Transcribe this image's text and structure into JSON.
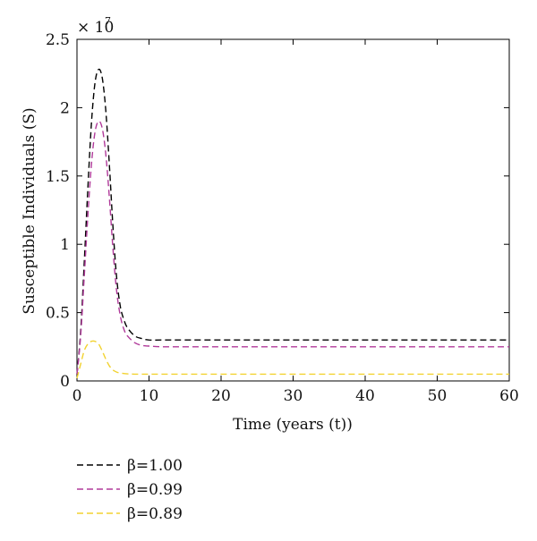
{
  "chart_data": {
    "type": "line",
    "xlabel": "Time (years (t))",
    "ylabel": "Susceptible Individuals (S)",
    "xlim": [
      0,
      60
    ],
    "ylim": [
      0,
      2.5
    ],
    "y_multiplier": "× 10",
    "y_multiplier_exponent": "7",
    "x_ticks": [
      "0",
      "10",
      "20",
      "30",
      "40",
      "50",
      "60"
    ],
    "y_ticks": [
      "0",
      "0.5",
      "1",
      "1.5",
      "2",
      "2.5"
    ],
    "grid": false,
    "legend_position": "below",
    "series": [
      {
        "name": "β=1.00",
        "color": "#000000",
        "x": [
          0,
          0.5,
          1,
          1.5,
          2,
          2.5,
          3,
          3.5,
          4,
          4.5,
          5,
          5.5,
          6,
          6.5,
          7,
          8,
          9,
          10,
          12,
          15,
          20,
          30,
          40,
          50,
          60
        ],
        "y": [
          0.05,
          0.35,
          0.85,
          1.4,
          1.88,
          2.18,
          2.28,
          2.22,
          1.98,
          1.58,
          1.12,
          0.76,
          0.55,
          0.45,
          0.39,
          0.33,
          0.31,
          0.3,
          0.3,
          0.3,
          0.3,
          0.3,
          0.3,
          0.3,
          0.3
        ]
      },
      {
        "name": "β=0.99",
        "color": "#b03a9a",
        "x": [
          0,
          0.5,
          1,
          1.5,
          2,
          2.5,
          3,
          3.5,
          4,
          4.5,
          5,
          5.5,
          6,
          6.5,
          7,
          8,
          9,
          10,
          12,
          15,
          20,
          30,
          40,
          50,
          60
        ],
        "y": [
          0.05,
          0.32,
          0.75,
          1.2,
          1.58,
          1.82,
          1.9,
          1.85,
          1.66,
          1.34,
          0.96,
          0.66,
          0.48,
          0.38,
          0.33,
          0.28,
          0.26,
          0.255,
          0.25,
          0.25,
          0.25,
          0.25,
          0.25,
          0.25,
          0.25
        ]
      },
      {
        "name": "β=0.89",
        "color": "#f2d230",
        "x": [
          0,
          0.5,
          1,
          1.5,
          2,
          2.5,
          3,
          3.5,
          4,
          4.5,
          5,
          5.5,
          6,
          7,
          8,
          10,
          15,
          20,
          30,
          40,
          50,
          60
        ],
        "y": [
          0.02,
          0.12,
          0.22,
          0.27,
          0.29,
          0.29,
          0.27,
          0.22,
          0.16,
          0.11,
          0.08,
          0.065,
          0.058,
          0.052,
          0.05,
          0.05,
          0.05,
          0.05,
          0.05,
          0.05,
          0.05,
          0.05
        ]
      }
    ]
  }
}
